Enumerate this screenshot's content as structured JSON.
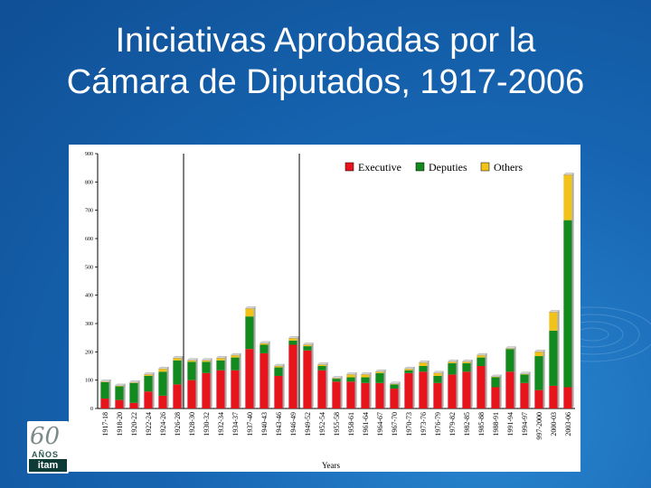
{
  "slide": {
    "title_line1": "Iniciativas Aprobadas por la",
    "title_line2": "Cámara de Diputados, 1917-2006"
  },
  "logo": {
    "number": "60",
    "subtitle": "AÑOS",
    "name": "itam"
  },
  "colors": {
    "executive": "#e8141c",
    "deputies": "#128a1e",
    "others": "#f0c21a"
  },
  "chart_data": {
    "type": "bar",
    "stacked": true,
    "xlabel": "Years",
    "ylabel": "",
    "ylim": [
      0,
      900
    ],
    "yticks": [
      0,
      100,
      200,
      300,
      400,
      500,
      600,
      700,
      800,
      900
    ],
    "legend_position": "top-right",
    "categories": [
      "1917-18",
      "1918-20",
      "1920-22",
      "1922-24",
      "1924-26",
      "1926-28",
      "1928-30",
      "1930-32",
      "1932-34",
      "1934-37",
      "1937-40",
      "1940-43",
      "1943-46",
      "1946-49",
      "1949-52",
      "1952-54",
      "1955-58",
      "1958-61",
      "1961-64",
      "1964-67",
      "1967-70",
      "1970-73",
      "1973-76",
      "1976-79",
      "1979-82",
      "1982-85",
      "1985-88",
      "1988-91",
      "1991-94",
      "1994-97",
      "997-2000",
      "2000-03",
      "2003-06"
    ],
    "series": [
      {
        "name": "Executive",
        "values": [
          35,
          30,
          20,
          60,
          45,
          85,
          100,
          125,
          135,
          135,
          210,
          195,
          115,
          225,
          205,
          135,
          95,
          95,
          90,
          90,
          70,
          125,
          130,
          90,
          120,
          130,
          150,
          75,
          130,
          90,
          65,
          80,
          75
        ]
      },
      {
        "name": "Deputies",
        "values": [
          58,
          48,
          70,
          55,
          85,
          85,
          65,
          40,
          35,
          45,
          115,
          30,
          30,
          15,
          15,
          15,
          10,
          15,
          20,
          35,
          15,
          10,
          20,
          25,
          40,
          30,
          30,
          35,
          80,
          30,
          120,
          195,
          590
        ]
      },
      {
        "name": "Others",
        "values": [
          2,
          2,
          2,
          5,
          10,
          8,
          5,
          5,
          8,
          8,
          28,
          5,
          5,
          8,
          5,
          5,
          2,
          10,
          10,
          5,
          2,
          5,
          12,
          10,
          5,
          5,
          8,
          2,
          2,
          2,
          15,
          65,
          160
        ]
      }
    ]
  }
}
